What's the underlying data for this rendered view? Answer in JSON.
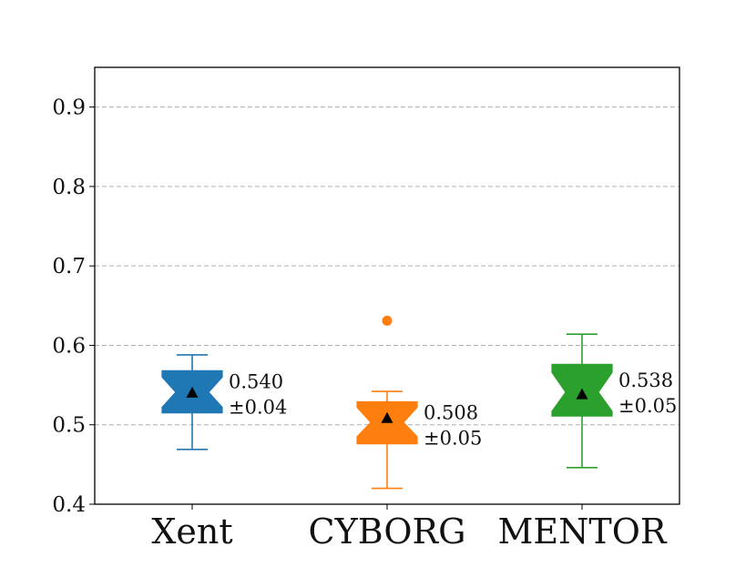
{
  "chart_data": {
    "type": "boxplot",
    "title": "",
    "xlabel": "",
    "ylabel": "",
    "ylim": [
      0.4,
      0.95
    ],
    "yticks": [
      "0.4",
      "0.5",
      "0.6",
      "0.7",
      "0.8",
      "0.9"
    ],
    "ytick_values": [
      0.4,
      0.5,
      0.6,
      0.7,
      0.8,
      0.9
    ],
    "grid": {
      "y": true,
      "style": "dashed"
    },
    "notched": true,
    "series": [
      {
        "category": "Xent",
        "color": "#1f77b4",
        "whisker_low": 0.469,
        "q1": 0.515,
        "median": 0.541,
        "q3": 0.568,
        "whisker_high": 0.588,
        "notch_low": 0.522,
        "notch_high": 0.56,
        "mean": 0.54,
        "outliers": [],
        "annotation": [
          "0.540",
          "±0.04"
        ]
      },
      {
        "category": "CYBORG",
        "color": "#ff7f0e",
        "whisker_low": 0.42,
        "q1": 0.476,
        "median": 0.503,
        "q3": 0.529,
        "whisker_high": 0.542,
        "notch_low": 0.485,
        "notch_high": 0.522,
        "mean": 0.508,
        "outliers": [
          0.631
        ],
        "annotation": [
          "0.508",
          "±0.05"
        ]
      },
      {
        "category": "MENTOR",
        "color": "#2ca02c",
        "whisker_low": 0.446,
        "q1": 0.511,
        "median": 0.541,
        "q3": 0.576,
        "whisker_high": 0.614,
        "notch_low": 0.517,
        "notch_high": 0.566,
        "mean": 0.538,
        "outliers": [],
        "annotation": [
          "0.538",
          "±0.05"
        ]
      }
    ]
  }
}
